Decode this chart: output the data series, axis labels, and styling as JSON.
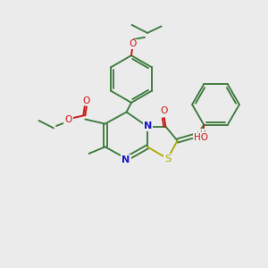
{
  "bg_color": "#ebebeb",
  "bond_color": "#3d7a3d",
  "n_color": "#1515cc",
  "o_color": "#cc1515",
  "s_color": "#aaaa00",
  "h_color": "#7a9a7a",
  "lw": 1.35,
  "fs": 7.2,
  "xlim": [
    0,
    10
  ],
  "ylim": [
    0,
    10
  ]
}
